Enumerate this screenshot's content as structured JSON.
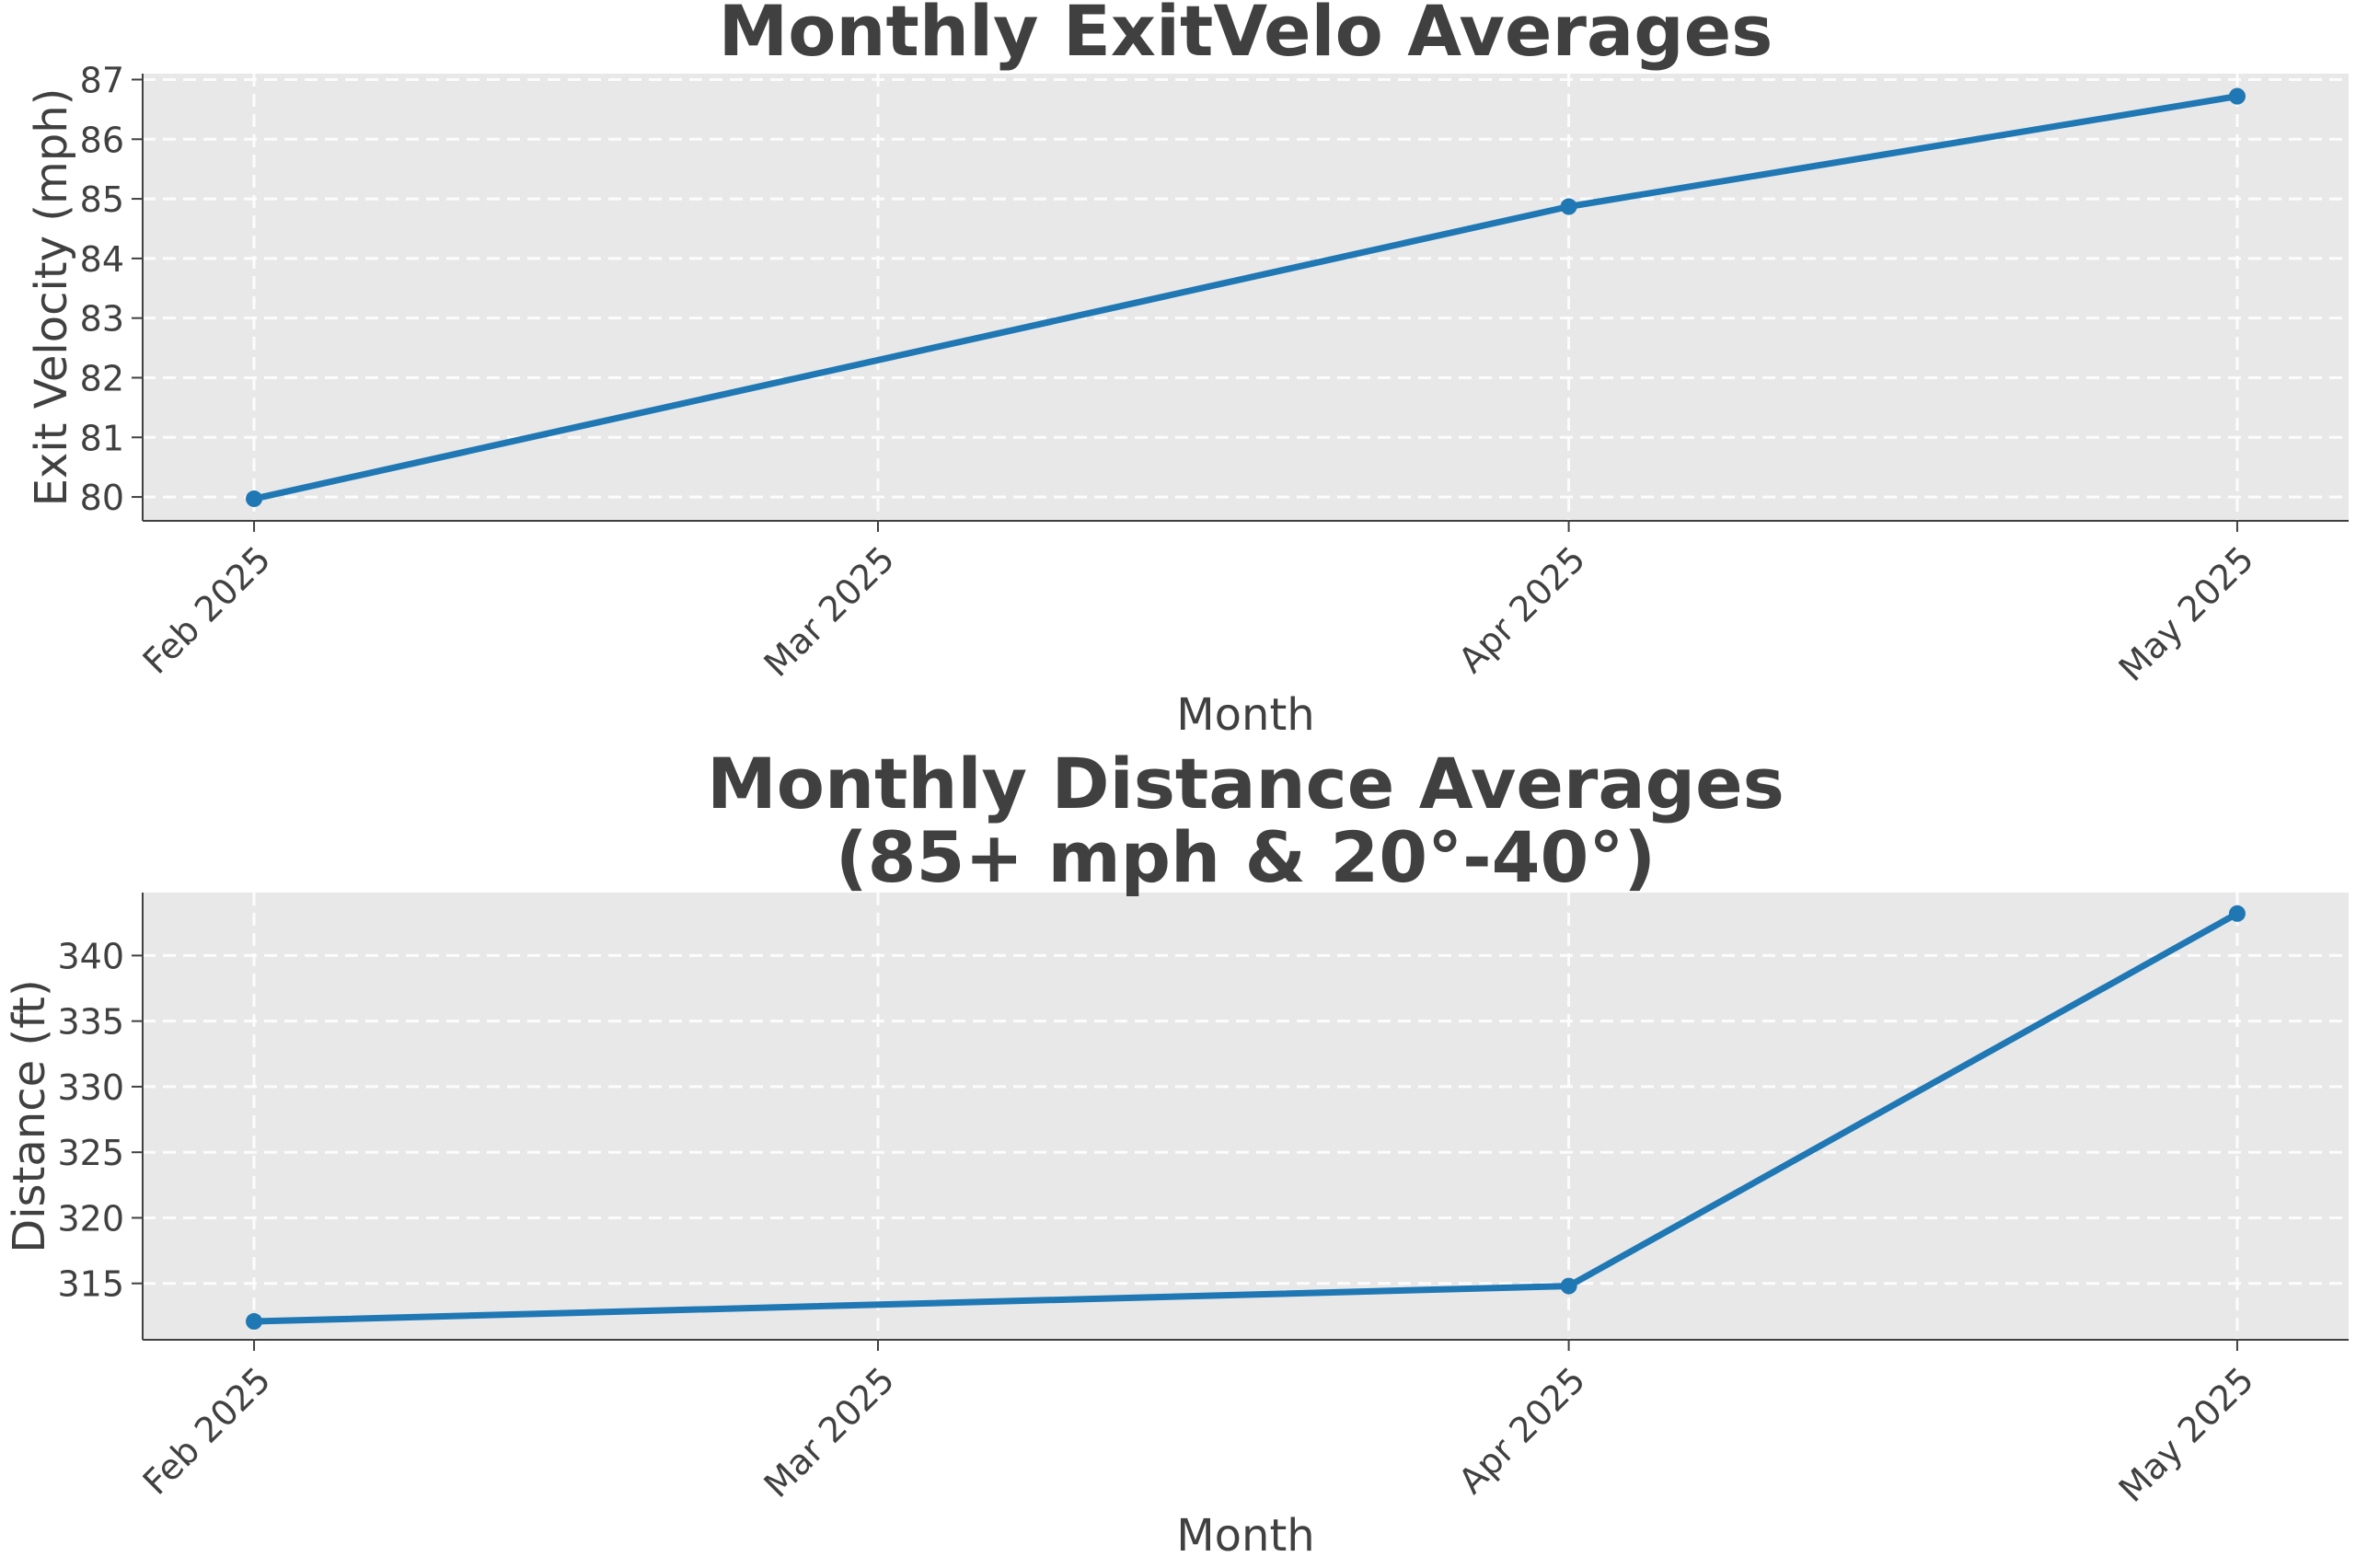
{
  "chart_data": [
    {
      "type": "line",
      "title": [
        "Monthly ExitVelo Averages"
      ],
      "xlabel": "Month",
      "ylabel": "Exit Velocity (mph)",
      "x_ticks": [
        {
          "date": "2025-02-01",
          "label": "Feb 2025"
        },
        {
          "date": "2025-03-01",
          "label": "Mar 2025"
        },
        {
          "date": "2025-04-01",
          "label": "Apr 2025"
        },
        {
          "date": "2025-05-01",
          "label": "May 2025"
        }
      ],
      "xlim": [
        "2025-01-27",
        "2025-05-06"
      ],
      "ylim": [
        79.6,
        87.1
      ],
      "y_ticks": [
        80,
        81,
        82,
        83,
        84,
        85,
        86,
        87
      ],
      "grid": true,
      "series": [
        {
          "color": "#1f77b4",
          "points": [
            {
              "x": "2025-02-01",
              "y": 79.97
            },
            {
              "x": "2025-04-01",
              "y": 84.87
            },
            {
              "x": "2025-05-01",
              "y": 86.72
            }
          ]
        }
      ]
    },
    {
      "type": "line",
      "title": [
        "Monthly Distance Averages",
        "(85+ mph & 20°-40°)"
      ],
      "xlabel": "Month",
      "ylabel": "Distance (ft)",
      "x_ticks": [
        {
          "date": "2025-02-01",
          "label": "Feb 2025"
        },
        {
          "date": "2025-03-01",
          "label": "Mar 2025"
        },
        {
          "date": "2025-04-01",
          "label": "Apr 2025"
        },
        {
          "date": "2025-05-01",
          "label": "May 2025"
        }
      ],
      "xlim": [
        "2025-01-27",
        "2025-05-06"
      ],
      "ylim": [
        310.7,
        344.8
      ],
      "y_ticks": [
        315,
        320,
        325,
        330,
        335,
        340
      ],
      "grid": true,
      "series": [
        {
          "color": "#1f77b4",
          "points": [
            {
              "x": "2025-02-01",
              "y": 312.1
            },
            {
              "x": "2025-04-01",
              "y": 314.8
            },
            {
              "x": "2025-05-01",
              "y": 343.2
            }
          ]
        }
      ]
    }
  ]
}
